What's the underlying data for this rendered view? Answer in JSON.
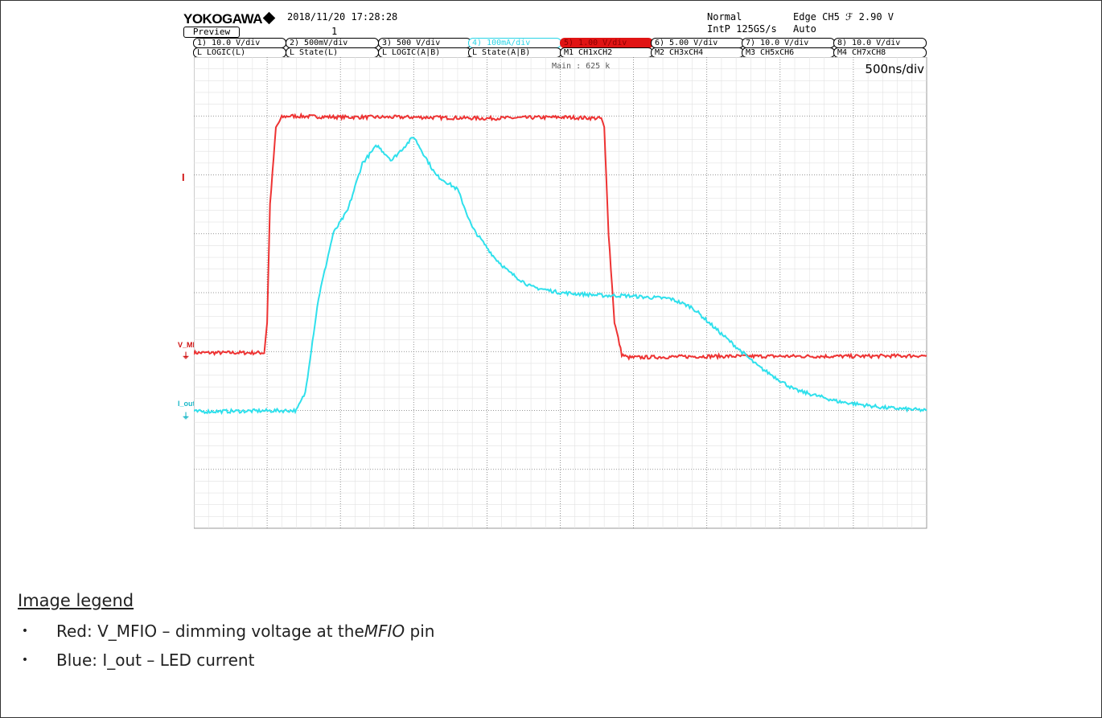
{
  "header": {
    "brand": "YOKOGAWA",
    "datetime": "2018/11/20 17:28:28",
    "preview": "Preview",
    "acq_count": "1",
    "mode": "Normal",
    "trigger": "Edge CH5 ℱ 2.90 V",
    "sample": "IntP 125GS/s",
    "trigger_mode": "Auto",
    "channels_row1": [
      "1) 10.0 V/div",
      "2) 500mV/div",
      "3) 500 V/div",
      "4) 100mA/div",
      "5) 1.00 V/div",
      "6) 5.00 V/div",
      "7) 10.0 V/div",
      "8) 10.0 V/div"
    ],
    "channels_row2": [
      "L LOGIC(L)",
      "L State(L)",
      "L LOGIC(A|B)",
      "L State(A|B)",
      "M1 CH1xCH2",
      "M2 CH3xCH4",
      "M3 CH5xCH6",
      "M4 CH7xCH8"
    ],
    "main_label": "Main : 625 k",
    "timebase": "500ns/div"
  },
  "channel_markers": {
    "trigger_marker": "I",
    "ch5_label": "V_MFIO",
    "ch4_label": "I_out"
  },
  "colors": {
    "red_trace": "#ee3333",
    "cyan_trace": "#2fe0ec",
    "grid": "#bbbbbb"
  },
  "chart_data": {
    "type": "line",
    "title": "",
    "xlabel": "",
    "ylabel": "",
    "x_unit": "ns",
    "x_range": [
      0,
      5000
    ],
    "y_unit": "div",
    "y_range": [
      0,
      8
    ],
    "grid": true,
    "series": [
      {
        "name": "V_MFIO",
        "color": "#ee3333",
        "x": [
          0,
          480,
          500,
          520,
          560,
          600,
          650,
          1000,
          1500,
          2000,
          2500,
          2780,
          2800,
          2830,
          2870,
          2920,
          2960,
          3000,
          3500,
          4000,
          4500,
          5000
        ],
        "y": [
          2.98,
          2.98,
          3.5,
          5.5,
          6.8,
          6.98,
          7.0,
          6.98,
          6.98,
          6.96,
          6.98,
          6.96,
          6.8,
          5.0,
          3.5,
          2.95,
          2.9,
          2.9,
          2.92,
          2.92,
          2.92,
          2.93
        ]
      },
      {
        "name": "I_out",
        "color": "#2fe0ec",
        "x": [
          0,
          700,
          760,
          850,
          950,
          1050,
          1150,
          1250,
          1350,
          1500,
          1650,
          1800,
          1900,
          2050,
          2150,
          2300,
          2500,
          2800,
          2950,
          3100,
          3250,
          3400,
          3600,
          3850,
          4100,
          4400,
          4700,
          5000
        ],
        "y": [
          1.98,
          2.0,
          2.3,
          3.9,
          5.0,
          5.4,
          6.2,
          6.5,
          6.25,
          6.65,
          6.0,
          5.75,
          5.1,
          4.6,
          4.35,
          4.1,
          4.0,
          3.95,
          3.95,
          3.92,
          3.9,
          3.75,
          3.3,
          2.75,
          2.35,
          2.15,
          2.05,
          2.0
        ]
      }
    ]
  },
  "legend": {
    "title": "Image legend",
    "items": [
      {
        "prefix": "Red: V_MFIO – dimming voltage at the ",
        "italic": "MFIO",
        "suffix": " pin"
      },
      {
        "prefix": "Blue: I_out – LED current",
        "italic": "",
        "suffix": ""
      }
    ]
  }
}
